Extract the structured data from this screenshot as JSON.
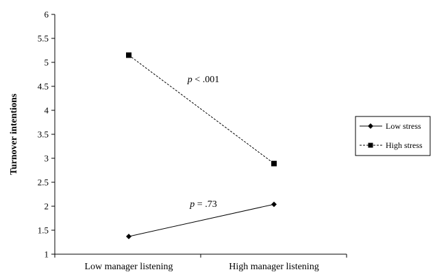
{
  "chart_data": {
    "type": "line",
    "categories": [
      "Low manager listening",
      "High manager listening"
    ],
    "series": [
      {
        "name": "Low stress",
        "values": [
          1.37,
          2.04
        ],
        "marker": "diamond",
        "line": "solid",
        "color": "#000000"
      },
      {
        "name": "High stress",
        "values": [
          5.15,
          2.89
        ],
        "marker": "square",
        "line": "dashed",
        "color": "#000000"
      }
    ],
    "ylabel": "Turnover intentions",
    "xlabel": "",
    "ylim": [
      1,
      6
    ],
    "yticks": [
      "1",
      "1.5",
      "2",
      "2.5",
      "3",
      "3.5",
      "4",
      "4.5",
      "5",
      "5.5",
      "6"
    ],
    "annotations": [
      {
        "italic": "p",
        "rest": " < .001",
        "series": "High stress"
      },
      {
        "italic": "p",
        "rest": " = .73",
        "series": "Low stress"
      }
    ],
    "grid": false,
    "legend_position": "right"
  }
}
